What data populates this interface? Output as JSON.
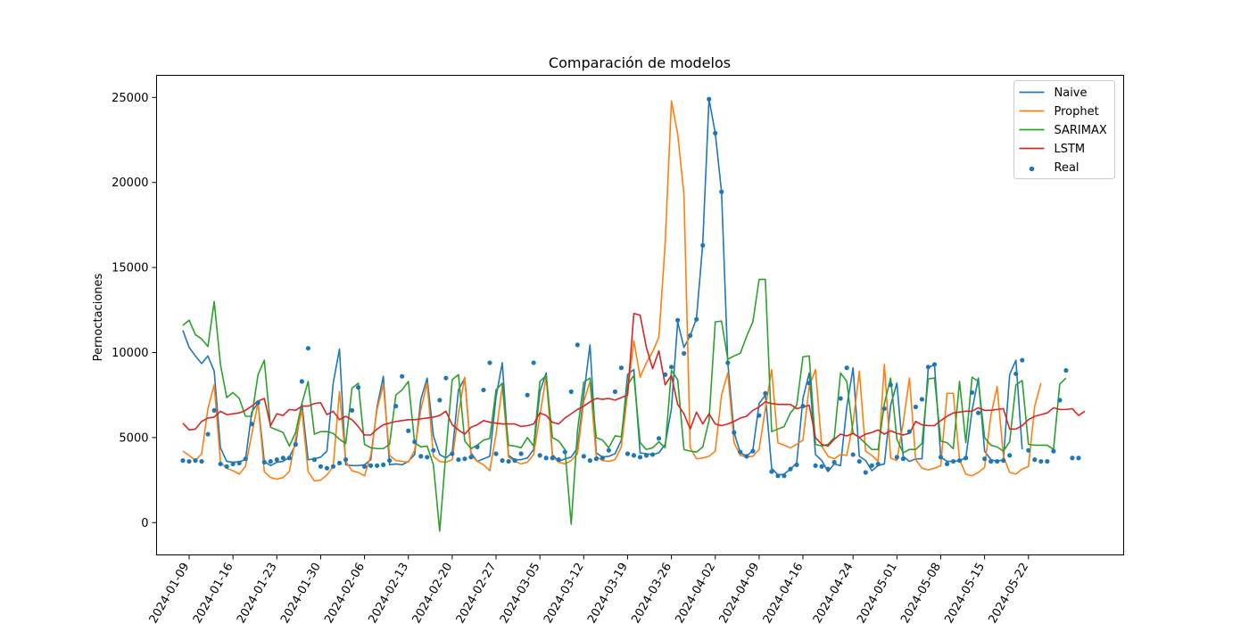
{
  "chart_data": {
    "type": "line",
    "title": "Comparación de modelos",
    "xlabel": "",
    "ylabel": "Pernoctaciones",
    "ylim": [
      -1900,
      26300
    ],
    "yticks": [
      0,
      5000,
      10000,
      15000,
      20000,
      25000
    ],
    "x_start": "2024-01-08",
    "x_ticks": [
      "2024-01-09",
      "2024-01-16",
      "2024-01-23",
      "2024-01-30",
      "2024-02-06",
      "2024-02-13",
      "2024-02-20",
      "2024-02-27",
      "2024-03-05",
      "2024-03-12",
      "2024-03-19",
      "2024-03-26",
      "2024-04-02",
      "2024-04-09",
      "2024-04-16",
      "2024-04-24",
      "2024-05-01",
      "2024-05-08",
      "2024-05-15",
      "2024-05-22"
    ],
    "x_tick_days": [
      1,
      8,
      15,
      22,
      29,
      36,
      43,
      50,
      57,
      64,
      71,
      78,
      85,
      92,
      99,
      107,
      114,
      121,
      128,
      135
    ],
    "legend_position": "upper right",
    "grid": false,
    "series": [
      {
        "name": "Naive",
        "kind": "line",
        "color": "#1f77b4",
        "x_day_start": 0,
        "values": [
          11300,
          10300,
          9800,
          9350,
          9800,
          8900,
          4400,
          3600,
          3550,
          3580,
          3700,
          6500,
          7050,
          3600,
          3350,
          3550,
          3600,
          3850,
          4600,
          7000,
          3700,
          3750,
          3850,
          4200,
          8200,
          10200,
          3400,
          3350,
          3350,
          3400,
          3700,
          6800,
          8600,
          3400,
          3450,
          3400,
          3600,
          4000,
          7250,
          8500,
          5100,
          4000,
          3800,
          4100,
          7800,
          8500,
          4100,
          3600,
          3750,
          3900,
          7400,
          9400,
          3950,
          3700,
          3700,
          3800,
          4300,
          7700,
          8800,
          4000,
          3600,
          3750,
          3850,
          4400,
          7500,
          10450,
          4100,
          3850,
          3900,
          4050,
          4850,
          8700,
          9000,
          4100,
          4050,
          4000,
          4100,
          4600,
          6700,
          11800,
          10300,
          11000,
          12000,
          16400,
          24900,
          22900,
          19450,
          9400,
          5300,
          4100,
          3900,
          4250,
          7000,
          7500,
          3200,
          2800,
          2850,
          3150,
          3500,
          7300,
          8800,
          4000,
          3650,
          3000,
          3450,
          3350,
          6800,
          9100,
          3900,
          3650,
          3050,
          3350,
          3450,
          6900,
          8200,
          3900,
          3600,
          3750,
          3750,
          9100,
          9300,
          3850,
          3600,
          3600,
          3650,
          3800,
          6600,
          8500,
          4200,
          3700,
          3600,
          3700,
          8700,
          9550,
          4300
        ]
      },
      {
        "name": "Prophet",
        "kind": "line",
        "color": "#ff7f0e",
        "x_day_start": 0,
        "values": [
          4200,
          3950,
          3650,
          4050,
          6700,
          8100,
          3550,
          3200,
          3050,
          2850,
          3300,
          5200,
          7050,
          3000,
          2650,
          2550,
          2650,
          3000,
          4950,
          6600,
          3000,
          2450,
          2500,
          2800,
          3300,
          7700,
          3600,
          3050,
          2950,
          2750,
          3950,
          6650,
          8100,
          3950,
          3650,
          3600,
          3550,
          4250,
          6650,
          8200,
          3900,
          3600,
          3550,
          3700,
          6400,
          8550,
          3950,
          3600,
          3400,
          3050,
          5200,
          8050,
          3850,
          3600,
          3450,
          3550,
          4000,
          6300,
          8600,
          3900,
          3550,
          3450,
          3650,
          4050,
          7100,
          8300,
          3900,
          3650,
          3600,
          3700,
          4450,
          7600,
          10700,
          8550,
          9400,
          10050,
          10900,
          16400,
          24800,
          22850,
          19300,
          4400,
          3750,
          3800,
          3900,
          4200,
          7500,
          8800,
          4700,
          3950,
          3850,
          3900,
          4300,
          6700,
          9000,
          4700,
          4550,
          4400,
          4600,
          4850,
          8000,
          9000,
          4500,
          3900,
          3750,
          4000,
          3950,
          5850,
          8900,
          4200,
          3950,
          3600,
          9300,
          3800,
          3650,
          5850,
          8500,
          3700,
          3200,
          3100,
          3200,
          3350,
          7600,
          7600,
          3700,
          2850,
          2750,
          2950,
          3250,
          6300,
          8000,
          3900,
          2950,
          2850,
          3150,
          3300,
          6850,
          8200
        ]
      },
      {
        "name": "SARIMAX",
        "kind": "line",
        "color": "#2ca02c",
        "x_day_start": 0,
        "values": [
          11600,
          11900,
          11050,
          10800,
          10350,
          13000,
          9300,
          7350,
          7650,
          7300,
          6250,
          6250,
          8700,
          9550,
          5600,
          5450,
          5300,
          4500,
          5300,
          7000,
          8300,
          5200,
          5350,
          5350,
          5250,
          4900,
          4650,
          7900,
          8200,
          4600,
          4400,
          4350,
          4350,
          4600,
          7500,
          7800,
          8300,
          4700,
          4450,
          4500,
          3400,
          -500,
          4150,
          8400,
          8700,
          4800,
          4350,
          4550,
          4850,
          4950,
          7800,
          8200,
          4550,
          4500,
          4400,
          5000,
          4500,
          8300,
          8650,
          5000,
          4800,
          4300,
          -100,
          5400,
          8250,
          8500,
          5000,
          4850,
          4400,
          5100,
          5050,
          8100,
          8650,
          4700,
          4300,
          4400,
          4750,
          4400,
          8950,
          8400,
          4300,
          4200,
          4150,
          4450,
          6000,
          11800,
          11850,
          9600,
          9800,
          9950,
          10950,
          11800,
          14300,
          14300,
          5350,
          5500,
          5650,
          6450,
          6900,
          9750,
          9800,
          4600,
          4500,
          4600,
          5000,
          8800,
          8300,
          5250,
          5000,
          4650,
          4300,
          4300,
          7000,
          8500,
          4900,
          4100,
          4300,
          4300,
          4650,
          8450,
          8500,
          4800,
          4700,
          4350,
          8300,
          4700,
          8550,
          8300,
          5000,
          4550,
          4450,
          4200,
          4750,
          8100,
          8350,
          4600,
          4550,
          4550,
          4550,
          4300,
          8150,
          8500
        ]
      },
      {
        "name": "LSTM",
        "kind": "line",
        "color": "#d62728",
        "x_day_start": 0,
        "values": [
          5850,
          5450,
          5500,
          5950,
          6150,
          6200,
          6550,
          6350,
          6400,
          6450,
          6600,
          6850,
          7150,
          7300,
          5700,
          6400,
          6300,
          6650,
          6600,
          6850,
          6850,
          7000,
          7050,
          6350,
          6550,
          6050,
          6250,
          6050,
          5650,
          5150,
          5150,
          5500,
          5750,
          5850,
          5950,
          6000,
          6050,
          6050,
          6100,
          6150,
          6200,
          6300,
          6550,
          5750,
          5450,
          5200,
          5600,
          5750,
          6000,
          5900,
          5850,
          5800,
          5800,
          5800,
          5650,
          5700,
          5800,
          6450,
          6300,
          5900,
          5800,
          6150,
          6400,
          6650,
          6850,
          7100,
          7300,
          7250,
          7300,
          7200,
          7350,
          7500,
          12300,
          12200,
          10300,
          9050,
          10100,
          8100,
          8650,
          6950,
          6400,
          5500,
          6500,
          5800,
          6400,
          5800,
          5700,
          5800,
          5950,
          6150,
          6250,
          6600,
          6800,
          7100,
          7000,
          6950,
          6950,
          6950,
          6700,
          6800,
          6900,
          5000,
          4600,
          4500,
          4900,
          5200,
          5100,
          5250,
          5000,
          5200,
          5300,
          5450,
          5200,
          5400,
          5250,
          5150,
          5250,
          5950,
          5750,
          5700,
          5700,
          6000,
          6250,
          6450,
          6500,
          6550,
          6550,
          6750,
          6600,
          6600,
          6650,
          6700,
          5500,
          5500,
          5700,
          6050,
          6250,
          6350,
          6450,
          6750,
          6650,
          6650,
          6700,
          6300,
          6550
        ]
      },
      {
        "name": "Real",
        "kind": "scatter",
        "color": "#1f77b4",
        "x_day_start": 0,
        "values": [
          3650,
          3600,
          3650,
          3600,
          5200,
          6600,
          3450,
          3300,
          3450,
          3500,
          3750,
          5800,
          7050,
          3550,
          3600,
          3700,
          3800,
          3800,
          4600,
          8300,
          10250,
          3700,
          3300,
          3200,
          3300,
          3500,
          3700,
          6600,
          7950,
          3300,
          3350,
          3350,
          3400,
          3650,
          6850,
          8600,
          5400,
          4750,
          3900,
          3850,
          4250,
          7200,
          8500,
          4050,
          3700,
          3750,
          3850,
          4450,
          7800,
          9400,
          4050,
          3650,
          3600,
          3650,
          4050,
          7500,
          9400,
          3950,
          3800,
          3800,
          3700,
          4150,
          7700,
          10450,
          3900,
          3650,
          3750,
          3800,
          4250,
          7700,
          9100,
          4050,
          3950,
          3850,
          3950,
          4000,
          4950,
          8700,
          9150,
          11900,
          9950,
          11000,
          11950,
          16300,
          24900,
          22900,
          19450,
          9400,
          5300,
          4150,
          3900,
          4200,
          6300,
          7600,
          3000,
          2750,
          2750,
          3150,
          3400,
          6850,
          8200,
          3350,
          3300,
          3150,
          3550,
          7300,
          9100,
          4000,
          3600,
          2950,
          3350,
          3450,
          6700,
          8100,
          3850,
          3750,
          5350,
          6800,
          7250,
          9150,
          9300,
          3850,
          3450,
          3600,
          3650,
          3800,
          7650,
          6450,
          3750,
          3600,
          3600,
          3650,
          3950,
          8750,
          9550,
          4250,
          3700,
          3600,
          3600,
          4200,
          7200,
          8950,
          3800,
          3800
        ]
      }
    ]
  }
}
